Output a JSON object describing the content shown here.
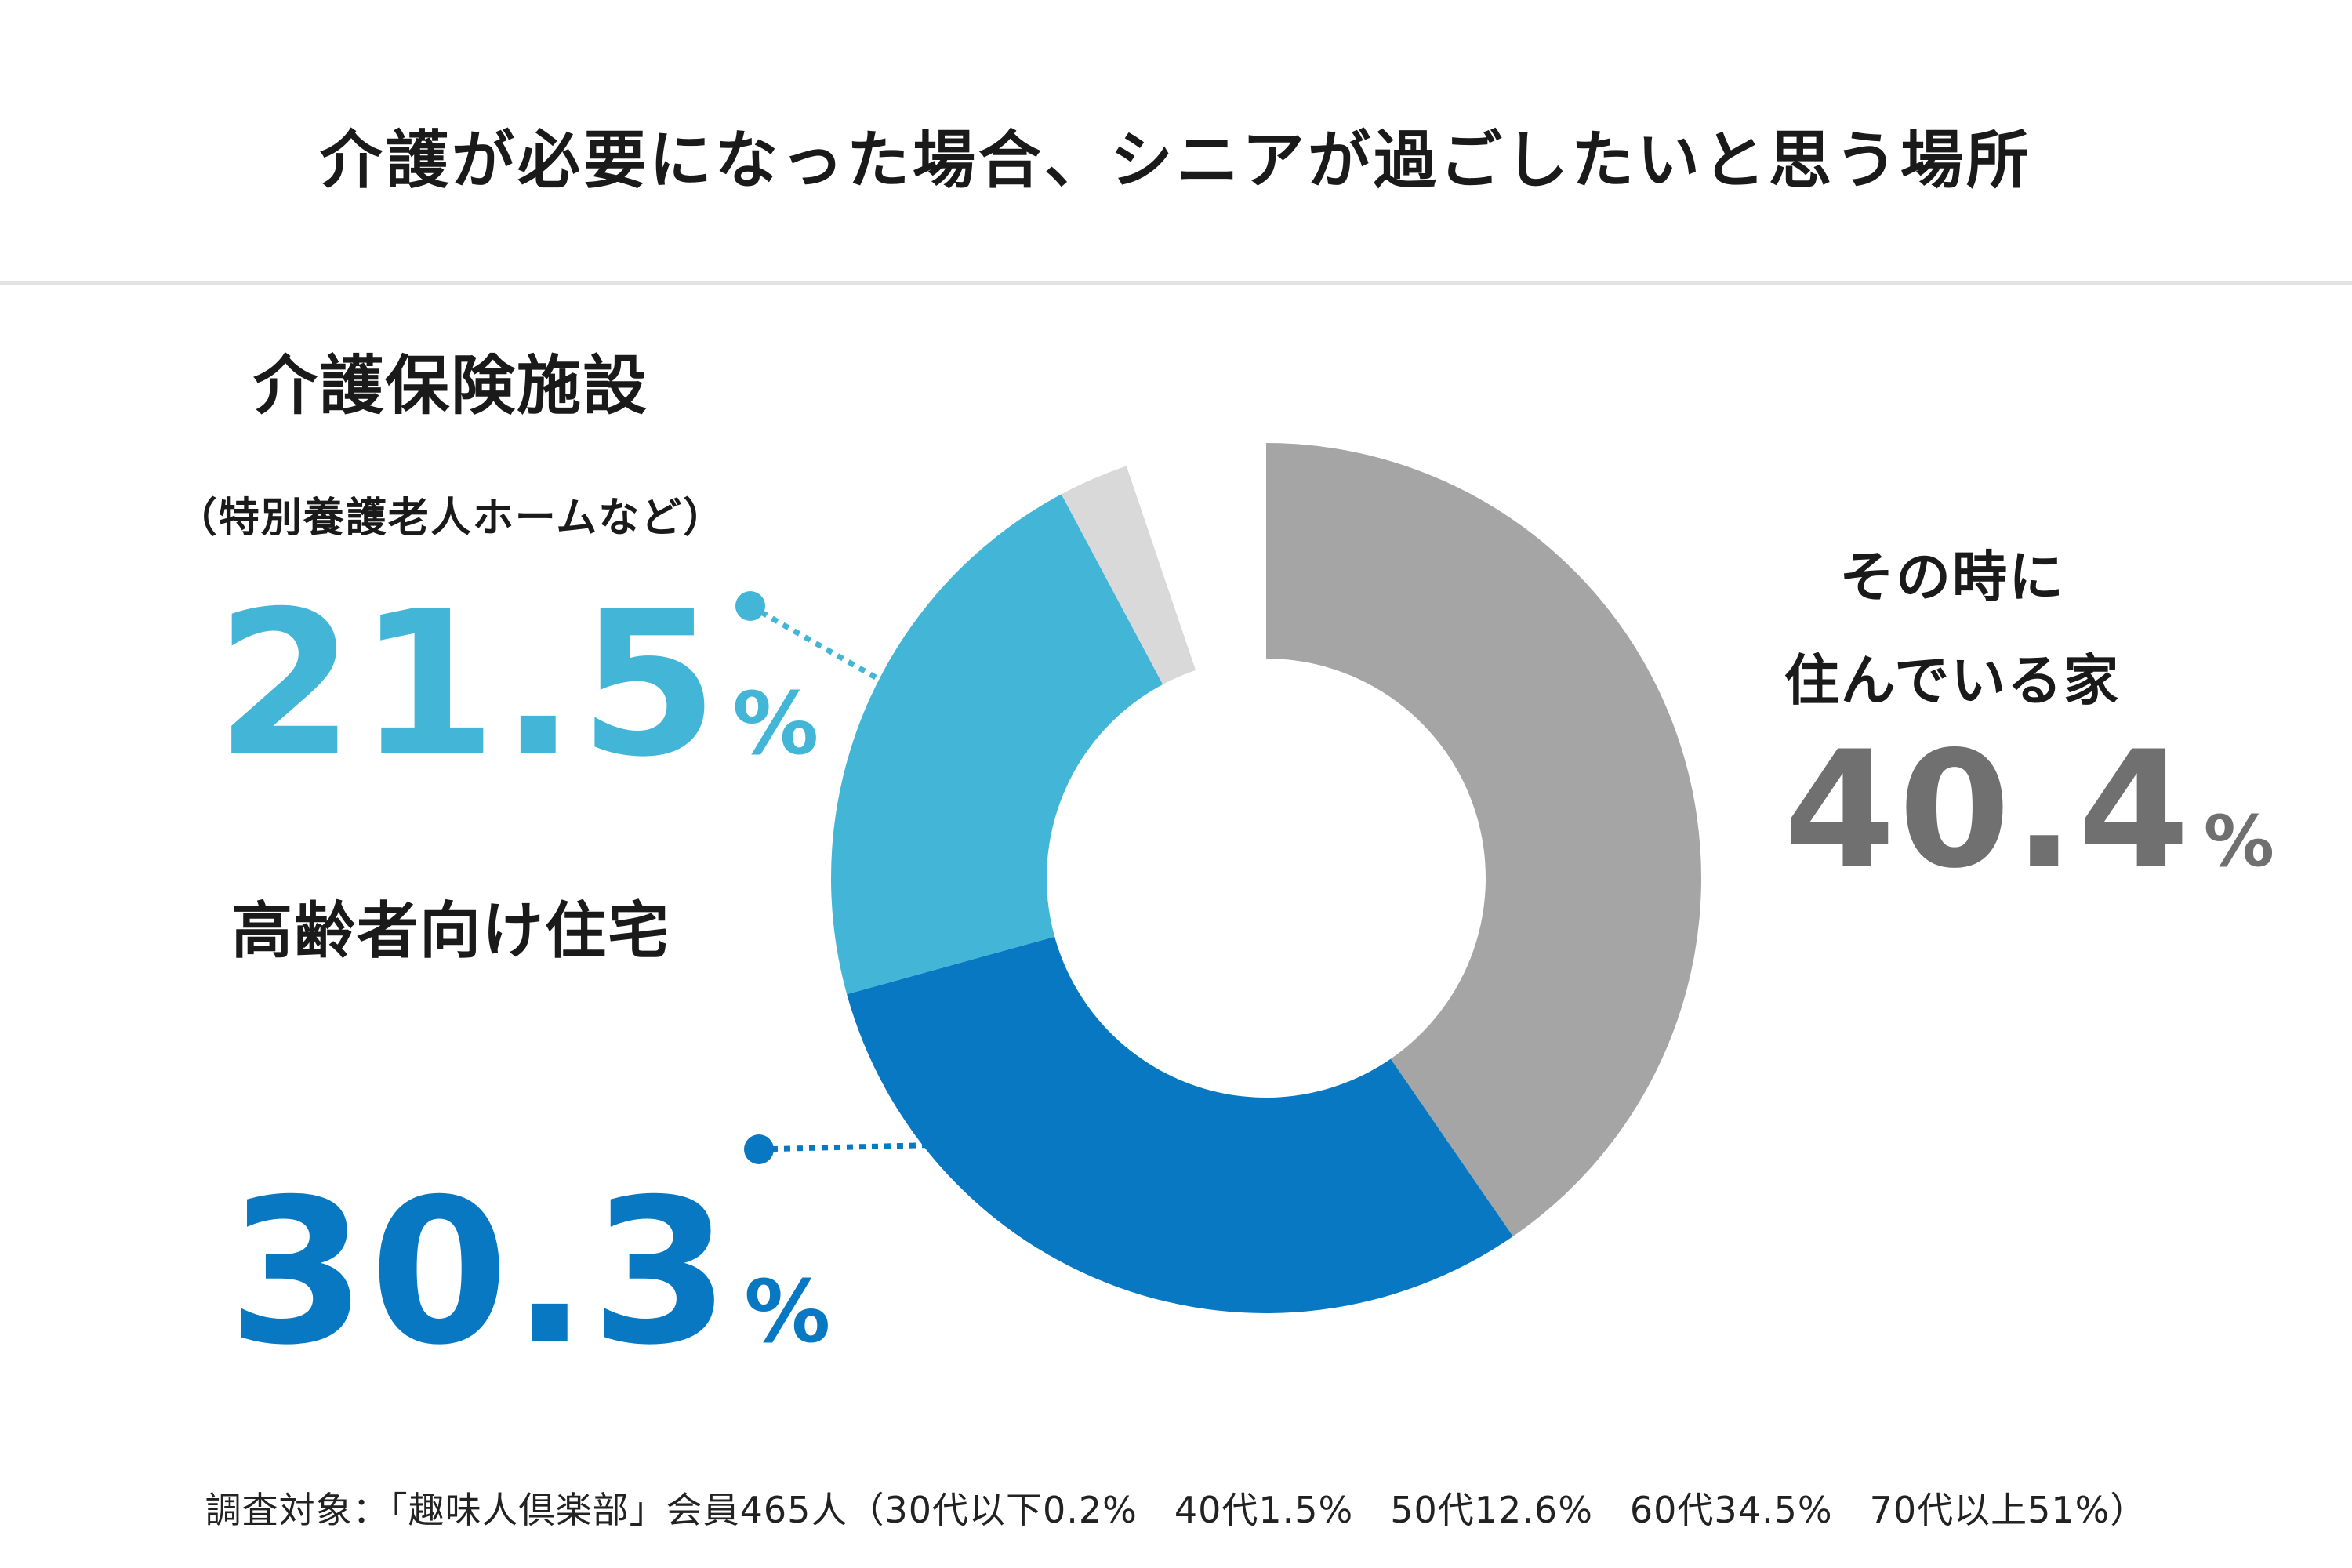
{
  "title": "介護が必要になった場合、シニアが過ごしたいと思う場所",
  "chart_data": {
    "type": "pie",
    "title": "介護が必要になった場合、シニアが過ごしたいと思う場所",
    "donut": true,
    "slices": [
      {
        "key": "home",
        "label": "その時に住んでいる家",
        "value": 40.4,
        "color": "#a5a5a5"
      },
      {
        "key": "senior",
        "label": "高齢者向け住宅",
        "value": 30.3,
        "color": "#0878c3"
      },
      {
        "key": "care",
        "label": "介護保険施設（特別養護老人ホームなど）",
        "value": 21.5,
        "color": "#43b6d7"
      },
      {
        "key": "other",
        "label": "",
        "value": 2.6,
        "color": "#d9d9d9"
      },
      {
        "key": "blank",
        "label": "",
        "value": 5.2,
        "color": "#ffffff"
      }
    ],
    "unit": "%"
  },
  "labels": {
    "care_name": "介護保険施設",
    "care_note": "（特別養護老人ホームなど）",
    "care_value": "21.5",
    "senior_name": "高齢者向け住宅",
    "senior_value": "30.3",
    "home_line1": "その時に",
    "home_line2": "住んでいる家",
    "home_value": "40.4",
    "percent": "%"
  },
  "colors": {
    "care": "#43b6d7",
    "senior": "#0878c3",
    "home": "#707070",
    "home_slice": "#a5a5a5"
  },
  "footnote": "調査対象：「趣味人倶楽部」会員465人（30代以下0.2%　40代1.5%　50代12.6%　60代34.5%　70代以上51%）"
}
